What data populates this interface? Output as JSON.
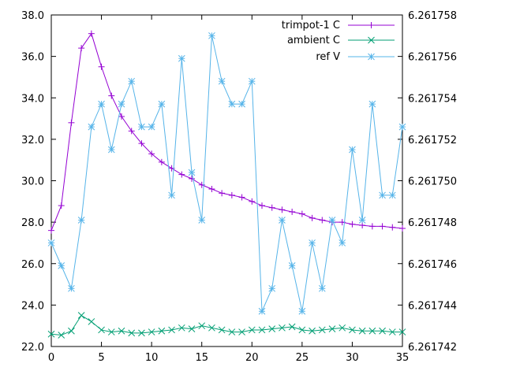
{
  "chart_data": {
    "type": "line",
    "title": "",
    "xlabel": "",
    "ylabel": "",
    "y2label": "",
    "xlim": [
      0,
      35
    ],
    "ylim": [
      22.0,
      38.0
    ],
    "y2lim": [
      6.261742,
      6.261758
    ],
    "xticks": [
      "0",
      "5",
      "10",
      "15",
      "20",
      "25",
      "30",
      "35"
    ],
    "yticks": [
      "22.0",
      "24.0",
      "26.0",
      "28.0",
      "30.0",
      "32.0",
      "34.0",
      "36.0",
      "38.0"
    ],
    "y2ticks": [
      "6.261742",
      "6.261744",
      "6.261746",
      "6.261748",
      "6.261750",
      "6.261752",
      "6.261754",
      "6.261756",
      "6.261758"
    ],
    "grid": false,
    "legend_position": "top-right",
    "x": [
      0,
      1,
      2,
      3,
      4,
      5,
      6,
      7,
      8,
      9,
      10,
      11,
      12,
      13,
      14,
      15,
      16,
      17,
      18,
      19,
      20,
      21,
      22,
      23,
      24,
      25,
      26,
      27,
      28,
      29,
      30,
      31,
      32,
      33,
      34,
      35
    ],
    "series": [
      {
        "name": "trimpot-1 C",
        "axis": "left",
        "marker": "plus",
        "color": "#9400d3",
        "values": [
          27.6,
          28.8,
          32.8,
          36.4,
          37.1,
          35.5,
          34.1,
          33.1,
          32.4,
          31.8,
          31.3,
          30.9,
          30.6,
          30.3,
          30.1,
          29.8,
          29.6,
          29.4,
          29.3,
          29.2,
          29.0,
          28.8,
          28.7,
          28.6,
          28.5,
          28.4,
          28.2,
          28.1,
          28.0,
          28.0,
          27.9,
          27.85,
          27.8,
          27.8,
          27.75,
          27.7
        ]
      },
      {
        "name": "ambient C",
        "axis": "left",
        "marker": "cross",
        "color": "#009e73",
        "values": [
          22.6,
          22.55,
          22.75,
          23.5,
          23.2,
          22.8,
          22.7,
          22.75,
          22.65,
          22.65,
          22.7,
          22.75,
          22.8,
          22.9,
          22.85,
          23.0,
          22.9,
          22.8,
          22.7,
          22.7,
          22.8,
          22.8,
          22.85,
          22.9,
          22.95,
          22.8,
          22.75,
          22.8,
          22.85,
          22.9,
          22.8,
          22.75,
          22.75,
          22.75,
          22.7,
          22.7
        ]
      },
      {
        "name": "ref V",
        "axis": "right",
        "marker": "star",
        "color": "#56b4e9",
        "values": [
          6.261747,
          6.2617459,
          6.2617448,
          6.2617481,
          6.2617526,
          6.2617537,
          6.2617515,
          6.2617537,
          6.2617548,
          6.2617526,
          6.2617526,
          6.2617537,
          6.2617493,
          6.2617559,
          6.2617504,
          6.2617481,
          6.261757,
          6.2617548,
          6.2617537,
          6.2617537,
          6.2617548,
          6.2617437,
          6.2617448,
          6.2617481,
          6.2617459,
          6.2617437,
          6.261747,
          6.2617448,
          6.2617481,
          6.261747,
          6.2617515,
          6.2617481,
          6.2617537,
          6.2617493,
          6.2617493,
          6.2617526
        ]
      }
    ]
  }
}
